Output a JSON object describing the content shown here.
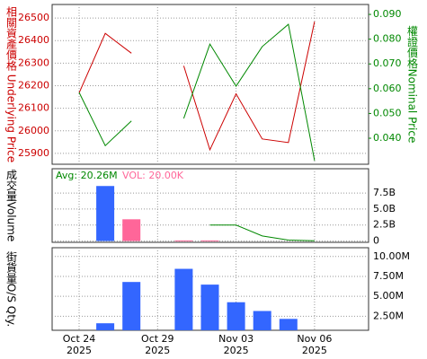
{
  "chart_data": [
    {
      "type": "line",
      "y_label": "相關資產價格 Underlying Price",
      "y2_label": "權證價格Nominal Price",
      "categories": [
        "Oct 24",
        null,
        null,
        "Oct 29",
        null,
        null,
        "Nov 03",
        null,
        null,
        "Nov 06",
        null
      ],
      "category_years": [
        "2025",
        null,
        null,
        "2025",
        null,
        null,
        "2025",
        null,
        null,
        "2025",
        null
      ],
      "series": [
        {
          "color": "#cc0000",
          "values": [
            26168,
            26432,
            26344,
            null,
            26288,
            25916,
            26164,
            25964,
            25948,
            26484,
            null
          ]
        },
        {
          "color": "#008800",
          "axis": "y2",
          "values": [
            0.0585,
            0.037,
            0.047,
            null,
            0.048,
            0.078,
            0.061,
            0.077,
            0.086,
            0.031,
            null
          ]
        }
      ],
      "ylim": [
        25852,
        26560
      ],
      "yticks": [
        25900,
        26000,
        26100,
        26200,
        26300,
        26400,
        26500
      ],
      "y2lim": [
        0.0295,
        0.094
      ],
      "y2ticks": [
        {
          "value": 0.04,
          "label": "0.040"
        },
        {
          "value": 0.05,
          "label": "0.050"
        },
        {
          "value": 0.06,
          "label": "0.060"
        },
        {
          "value": 0.07,
          "label": "0.070"
        },
        {
          "value": 0.08,
          "label": "0.080"
        },
        {
          "value": 0.09,
          "label": "0.090"
        }
      ],
      "grid": true
    },
    {
      "type": "bar",
      "y_label": "成交量Volume",
      "avg_label": "Avg: 20.26M",
      "vol_label": "VOL: 20.00K",
      "series": [
        {
          "values": [
            null,
            8600000000,
            3400000000,
            null,
            100000000,
            100000000,
            null,
            null,
            null,
            null,
            null
          ],
          "colors": [
            null,
            "#3366ff",
            "#ff6699",
            null,
            "#ff6699",
            "#ff6699",
            null,
            null,
            null,
            null,
            null
          ]
        },
        {
          "type": "line",
          "color": "#008800",
          "values": [
            null,
            null,
            null,
            null,
            null,
            2500000000,
            2500000000,
            800000000,
            150000000,
            50000000,
            null
          ]
        }
      ],
      "ylim": [
        -200000000,
        11300000000
      ],
      "yticks": [
        0,
        {
          "value": 2500000000,
          "label": "2.5B"
        },
        {
          "value": 5000000000,
          "label": "5.0B"
        },
        {
          "value": 7500000000,
          "label": "7.5B"
        }
      ],
      "grid": true
    },
    {
      "type": "bar",
      "y_label": "街貨量O/S Qty.",
      "color": "#3366ff",
      "values": [
        null,
        1620000,
        6800000,
        null,
        8450000,
        6470000,
        4260000,
        3160000,
        2170000,
        null,
        null
      ],
      "ylim": [
        740000,
        11100000
      ],
      "yticks": [
        {
          "value": 2500000,
          "label": "2.50M"
        },
        {
          "value": 5000000,
          "label": "5.00M"
        },
        {
          "value": 7500000,
          "label": "7.50M"
        },
        {
          "value": 10000000,
          "label": "10.00M"
        }
      ],
      "grid": true
    }
  ]
}
